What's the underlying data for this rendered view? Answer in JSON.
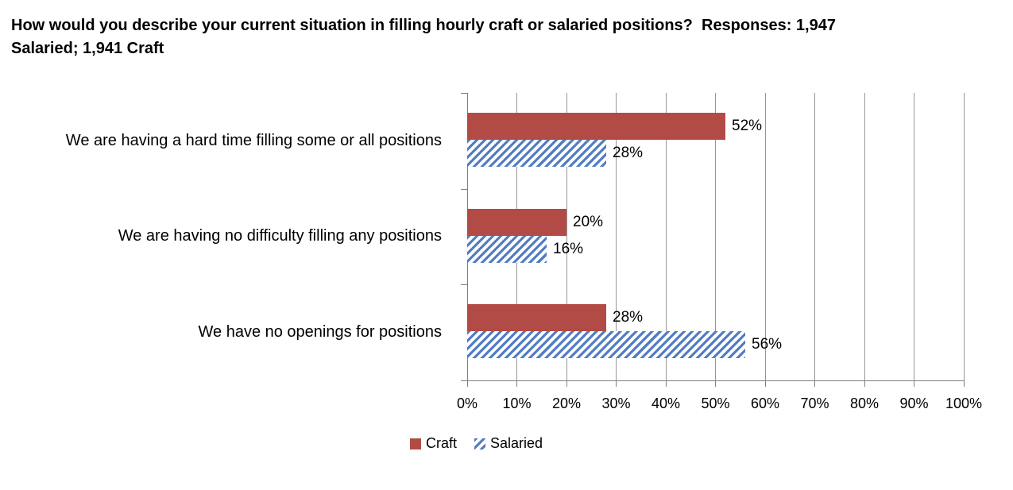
{
  "title_text": "How would you describe your current situation in filling hourly craft or salaried positions?  Responses: 1,947\nSalaried; 1,941 Craft",
  "chart_data": {
    "type": "bar",
    "orientation": "horizontal",
    "title": "How would you describe your current situation in filling hourly craft or salaried positions?  Responses: 1,947 Salaried; 1,941 Craft",
    "categories": [
      "We are having a hard time filling some or all positions",
      "We are having no difficulty filling any positions",
      "We have no openings for positions"
    ],
    "series": [
      {
        "name": "Craft",
        "pattern": "solid",
        "color": "#b24b45",
        "values": [
          52,
          20,
          28
        ]
      },
      {
        "name": "Salaried",
        "pattern": "diagonal-hatch",
        "color": "#527dc1",
        "values": [
          28,
          16,
          56
        ]
      }
    ],
    "data_label_suffix": "%",
    "x_axis": {
      "min": 0,
      "max": 100,
      "step": 10,
      "tick_labels": [
        "0%",
        "10%",
        "20%",
        "30%",
        "40%",
        "50%",
        "60%",
        "70%",
        "80%",
        "90%",
        "100%"
      ]
    },
    "grid": "vertical",
    "grid_color": "#969696",
    "axis_color": "#808080",
    "legend": {
      "position": "bottom",
      "entries": [
        "Craft",
        "Salaried"
      ]
    }
  }
}
